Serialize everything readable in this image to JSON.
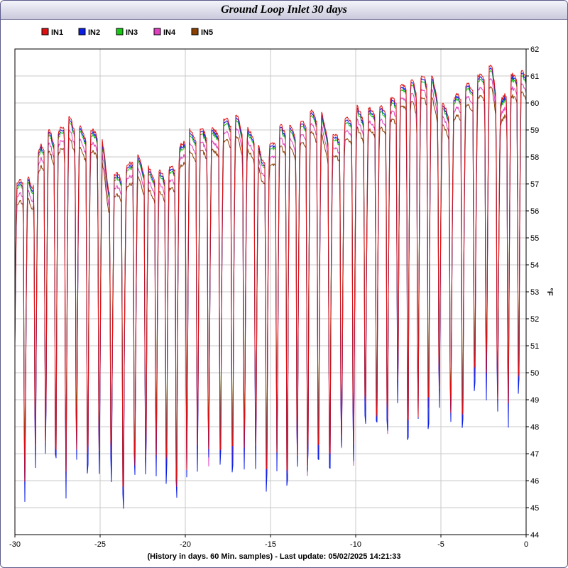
{
  "window": {
    "title": "Ground Loop Inlet 30 days"
  },
  "chart_data": {
    "type": "line",
    "title": "Ground Loop Inlet 30 days",
    "xlabel": "(History in days. 60 Min. samples) - Last update: 05/02/2025 14:21:33",
    "ylabel": "°F",
    "xlim": [
      -30,
      0
    ],
    "ylim": [
      44,
      62
    ],
    "x_ticks": [
      -30,
      -25,
      -20,
      -15,
      -10,
      -5,
      0
    ],
    "y_ticks": [
      44,
      45,
      46,
      47,
      48,
      49,
      50,
      51,
      52,
      53,
      54,
      55,
      56,
      57,
      58,
      59,
      60,
      61,
      62
    ],
    "grid": true,
    "legend_position": "top-left",
    "series": [
      {
        "name": "IN1",
        "color": "#e01010",
        "offset_top": 0.0,
        "offset_low": 0.0
      },
      {
        "name": "IN2",
        "color": "#0a1ee6",
        "offset_top": -0.1,
        "offset_low": -0.6
      },
      {
        "name": "IN3",
        "color": "#14c814",
        "offset_top": -0.2,
        "offset_low": 0.3
      },
      {
        "name": "IN4",
        "color": "#e040c0",
        "offset_top": -0.5,
        "offset_low": -0.3
      },
      {
        "name": "IN5",
        "color": "#8a4000",
        "offset_top": -0.8,
        "offset_low": 0.1
      }
    ],
    "envelope_x": [
      -30,
      -29.5,
      -29,
      -28.5,
      -28,
      -27.5,
      -27,
      -26.5,
      -26,
      -25.5,
      -25,
      -24.5,
      -24,
      -23.5,
      -23,
      -22.5,
      -22,
      -21.5,
      -21,
      -20.5,
      -20,
      -19.5,
      -19,
      -18.5,
      -18,
      -17.5,
      -17,
      -16.5,
      -16,
      -15.5,
      -15,
      -14.5,
      -14,
      -13.5,
      -13,
      -12.5,
      -12,
      -11.5,
      -11,
      -10.5,
      -10,
      -9.5,
      -9,
      -8.5,
      -8,
      -7.5,
      -7,
      -6.5,
      -6,
      -5.5,
      -5,
      -4.5,
      -4,
      -3.5,
      -3,
      -2.5,
      -2,
      -1.5,
      -1,
      -0.5,
      0
    ],
    "envelope_high": [
      56.8,
      57.5,
      57.0,
      58.5,
      59.0,
      58.8,
      59.7,
      59.3,
      59.0,
      59.0,
      59.2,
      57.0,
      57.5,
      57.5,
      58.3,
      57.8,
      57.5,
      57.5,
      57.5,
      58.0,
      59.0,
      59.0,
      59.1,
      59.0,
      59.2,
      59.6,
      59.6,
      59.1,
      59.0,
      58.0,
      58.5,
      59.2,
      59.2,
      59.0,
      59.5,
      59.8,
      59.6,
      58.8,
      59.0,
      59.5,
      59.9,
      59.6,
      59.9,
      59.9,
      60.1,
      60.5,
      61.0,
      60.8,
      61.1,
      61.0,
      60.0,
      59.8,
      60.5,
      60.7,
      60.9,
      61.2,
      61.4,
      60.0,
      61.0,
      61.2,
      61.2
    ],
    "envelope_low": [
      46.3,
      45.5,
      46.8,
      47.3,
      47.1,
      46.8,
      45.6,
      47.1,
      47.2,
      46.5,
      46.6,
      47.0,
      45.5,
      45.7,
      46.0,
      46.2,
      46.5,
      46.4,
      46.3,
      45.7,
      46.3,
      47.2,
      46.5,
      47.0,
      47.2,
      46.8,
      46.6,
      46.9,
      47.1,
      46.4,
      46.3,
      46.6,
      46.2,
      46.9,
      46.1,
      46.8,
      47.4,
      46.5,
      46.9,
      47.2,
      46.9,
      48.8,
      48.6,
      47.9,
      47.9,
      49.4,
      48.0,
      48.2,
      48.4,
      48.9,
      49.3,
      48.3,
      48.1,
      48.6,
      49.8,
      49.7,
      49.3,
      48.6,
      48.5,
      49.7,
      50.3
    ],
    "cycles_per_day": 1.55
  }
}
